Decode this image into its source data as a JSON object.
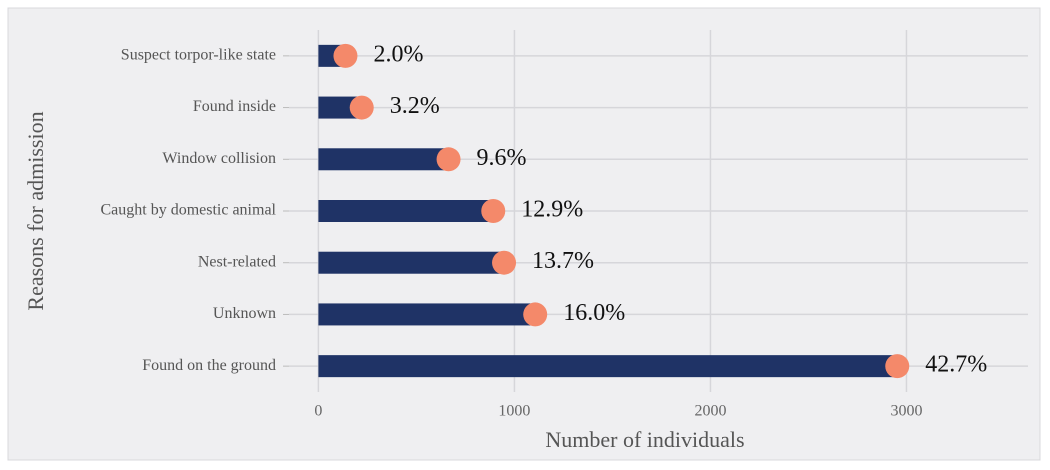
{
  "chart_data": {
    "type": "bar",
    "orientation": "horizontal",
    "x_label": "Number of individuals",
    "y_label": "Reasons for admission",
    "categories": [
      "Suspect torpor-like state",
      "Found inside",
      "Window collision",
      "Caught by domestic animal",
      "Nest-related",
      "Unknown",
      "Found on the ground"
    ],
    "values": [
      138,
      221,
      664,
      892,
      947,
      1106,
      2953
    ],
    "value_labels": [
      "2.0%",
      "3.2%",
      "9.6%",
      "12.9%",
      "13.7%",
      "16.0%",
      "42.7%"
    ],
    "color": "#1f3366",
    "dot_color": "#f4896a",
    "xlim": [
      -150,
      3620
    ],
    "xticks": [
      0,
      1000,
      2000,
      3000
    ],
    "grid": true
  }
}
